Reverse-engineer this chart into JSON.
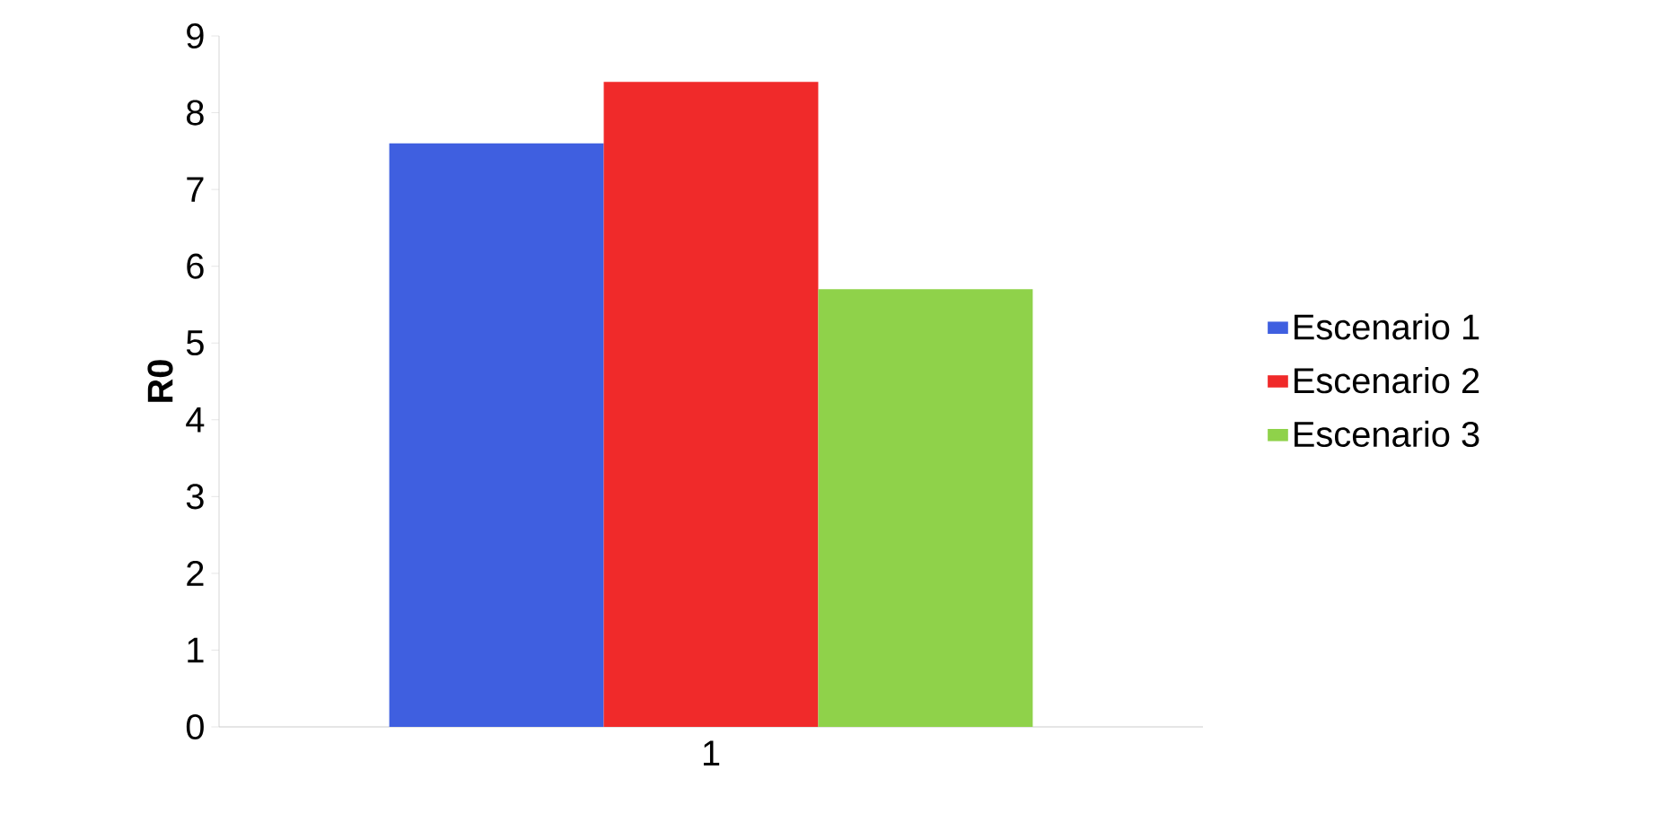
{
  "chart_data": {
    "type": "bar",
    "categories": [
      "1"
    ],
    "ylabel": "R0",
    "series": [
      {
        "name": "Escenario 1",
        "color": "#3f5fe0",
        "values": [
          7.6
        ]
      },
      {
        "name": "Escenario 2",
        "color": "#f02a2a",
        "values": [
          8.4
        ]
      },
      {
        "name": "Escenario 3",
        "color": "#8fd24a",
        "values": [
          5.7
        ]
      }
    ],
    "ylim": [
      0,
      9
    ],
    "yticks": [
      0,
      1,
      2,
      3,
      4,
      5,
      6,
      7,
      8,
      9
    ],
    "legend": "right",
    "grid": false
  }
}
